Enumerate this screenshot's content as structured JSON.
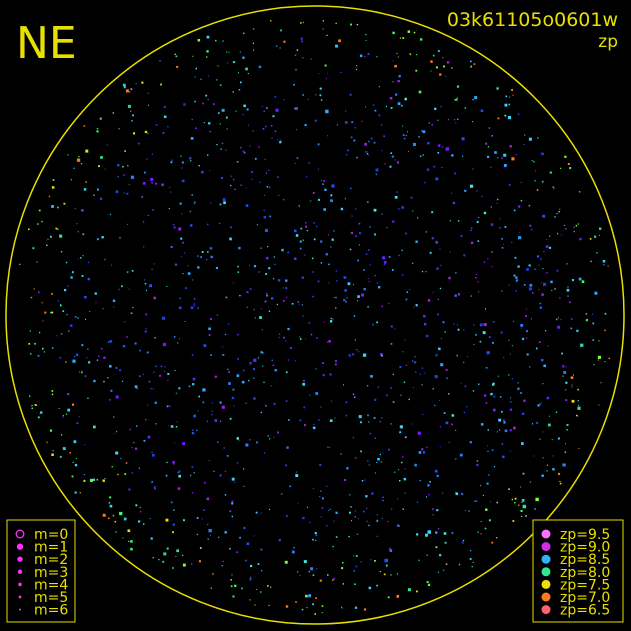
{
  "corner_label": "NE",
  "header": {
    "frame_id": "03k61105o0601w",
    "subtitle": "zp"
  },
  "magnitude_legend": {
    "color": "#ff30ff",
    "items": [
      "m=0",
      "m=1",
      "m=2",
      "m=3",
      "m=4",
      "m=5",
      "m=6"
    ]
  },
  "zp_legend": {
    "items": [
      {
        "label": "zp=9.5",
        "color": "#ff70ff"
      },
      {
        "label": "zp=9.0",
        "color": "#d030e0"
      },
      {
        "label": "zp=8.5",
        "color": "#30b0ff"
      },
      {
        "label": "zp=8.0",
        "color": "#30e890"
      },
      {
        "label": "zp=7.5",
        "color": "#f0e000"
      },
      {
        "label": "zp=7.0",
        "color": "#ff7a20"
      },
      {
        "label": "zp=6.5",
        "color": "#ff6070"
      }
    ]
  }
}
